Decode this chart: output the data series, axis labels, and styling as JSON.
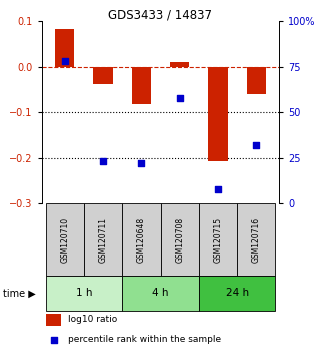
{
  "title": "GDS3433 / 14837",
  "samples": [
    "GSM120710",
    "GSM120711",
    "GSM120648",
    "GSM120708",
    "GSM120715",
    "GSM120716"
  ],
  "log10_ratio": [
    0.082,
    -0.038,
    -0.082,
    0.01,
    -0.208,
    -0.06
  ],
  "percentile_rank": [
    78,
    23,
    22,
    58,
    8,
    32
  ],
  "bar_color": "#cc2200",
  "dot_color": "#0000cc",
  "ylim_left": [
    -0.3,
    0.1
  ],
  "ylim_right": [
    0,
    100
  ],
  "yticks_left": [
    0.1,
    0.0,
    -0.1,
    -0.2,
    -0.3
  ],
  "yticks_right": [
    100,
    75,
    50,
    25,
    0
  ],
  "hline_y": 0.0,
  "dotted_lines": [
    -0.1,
    -0.2
  ],
  "time_groups": [
    {
      "label": "1 h",
      "cols": [
        0,
        1
      ],
      "color": "#c8f0c8"
    },
    {
      "label": "4 h",
      "cols": [
        2,
        3
      ],
      "color": "#90e090"
    },
    {
      "label": "24 h",
      "cols": [
        4,
        5
      ],
      "color": "#40c040"
    }
  ],
  "legend_bar_label": "log10 ratio",
  "legend_dot_label": "percentile rank within the sample",
  "time_label": "time",
  "bg_color": "#ffffff",
  "sample_box_color": "#d0d0d0",
  "bar_width": 0.5
}
